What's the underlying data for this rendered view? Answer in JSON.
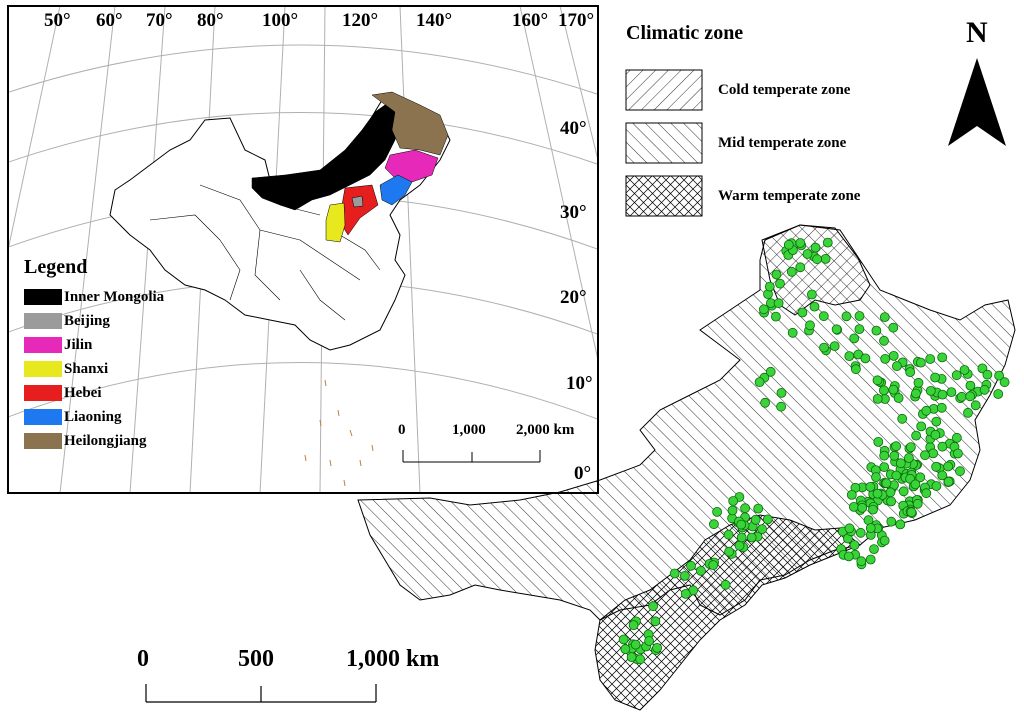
{
  "inset": {
    "longitude_labels": [
      "50°",
      "60°",
      "70°",
      "80°",
      "100°",
      "120°",
      "140°",
      "160°",
      "170°"
    ],
    "latitude_labels": [
      "40°",
      "30°",
      "20°",
      "10°",
      "0°"
    ],
    "legend_title": "Legend",
    "legend_items": [
      {
        "label": "Inner Mongolia",
        "color": "#000000"
      },
      {
        "label": "Beijing",
        "color": "#9b9b9b"
      },
      {
        "label": "Jilin",
        "color": "#e629b8"
      },
      {
        "label": "Shanxi",
        "color": "#e8e81e"
      },
      {
        "label": "Hebei",
        "color": "#e61e1e"
      },
      {
        "label": "Liaoning",
        "color": "#1e78f0"
      },
      {
        "label": "Heilongjiang",
        "color": "#8c7350"
      }
    ],
    "scale_labels": [
      "0",
      "1,000",
      "2,000 km"
    ]
  },
  "climatic_zone": {
    "title": "Climatic zone",
    "items": [
      {
        "label": "Cold temperate zone",
        "pattern": "diagonal-forward"
      },
      {
        "label": "Mid temperate zone",
        "pattern": "diagonal-backward"
      },
      {
        "label": "Warm temperate zone",
        "pattern": "crosshatch"
      }
    ],
    "point_color": "#3ad43a"
  },
  "north_label": "N",
  "main_scale_labels": [
    "0",
    "500",
    "1,000 km"
  ]
}
